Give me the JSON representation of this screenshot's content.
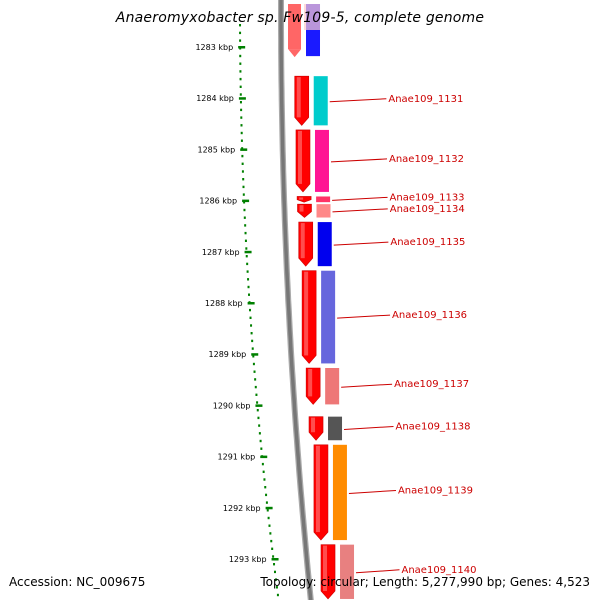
{
  "title": "Anaeromyxobacter sp. Fw109-5, complete genome",
  "accession": "Accession: NC_009675",
  "summary": "Topology: circular; Length: 5,277,990 bp; Genes: 4,523",
  "colors": {
    "backbone": "#777777",
    "cds_arrow": "#ff0000",
    "scale_tick": "#008000",
    "label": "#cc0000"
  },
  "scale": {
    "unit": "kbp",
    "ticks": [
      1283,
      1284,
      1285,
      1286,
      1287,
      1288,
      1289,
      1290,
      1291,
      1292,
      1293
    ],
    "labels": [
      "1283 kbp",
      "1284 kbp",
      "1285 kbp",
      "1286 kbp",
      "1287 kbp",
      "1288 kbp",
      "1289 kbp",
      "1290 kbp",
      "1291 kbp",
      "1292 kbp",
      "1293 kbp"
    ]
  },
  "genes": [
    {
      "label": "Anae109_1131",
      "start_kbp": 1283.55,
      "end_kbp": 1284.55,
      "color": "#00cccc"
    },
    {
      "label": "Anae109_1132",
      "start_kbp": 1284.6,
      "end_kbp": 1285.85,
      "color": "#ff1493"
    },
    {
      "label": "Anae109_1133",
      "start_kbp": 1285.9,
      "end_kbp": 1286.05,
      "color": "#ff3366"
    },
    {
      "label": "Anae109_1134",
      "start_kbp": 1286.05,
      "end_kbp": 1286.35,
      "color": "#ff8888"
    },
    {
      "label": "Anae109_1135",
      "start_kbp": 1286.4,
      "end_kbp": 1287.3,
      "color": "#0000ee"
    },
    {
      "label": "Anae109_1136",
      "start_kbp": 1287.35,
      "end_kbp": 1289.2,
      "color": "#6666dd"
    },
    {
      "label": "Anae109_1137",
      "start_kbp": 1289.25,
      "end_kbp": 1290.0,
      "color": "#ee7777"
    },
    {
      "label": "Anae109_1138",
      "start_kbp": 1290.2,
      "end_kbp": 1290.7,
      "color": "#555555"
    },
    {
      "label": "Anae109_1139",
      "start_kbp": 1290.75,
      "end_kbp": 1292.65,
      "color": "#ff8c00"
    },
    {
      "label": "Anae109_1140",
      "start_kbp": 1292.7,
      "end_kbp": 1293.8,
      "color": "#e88080"
    }
  ]
}
